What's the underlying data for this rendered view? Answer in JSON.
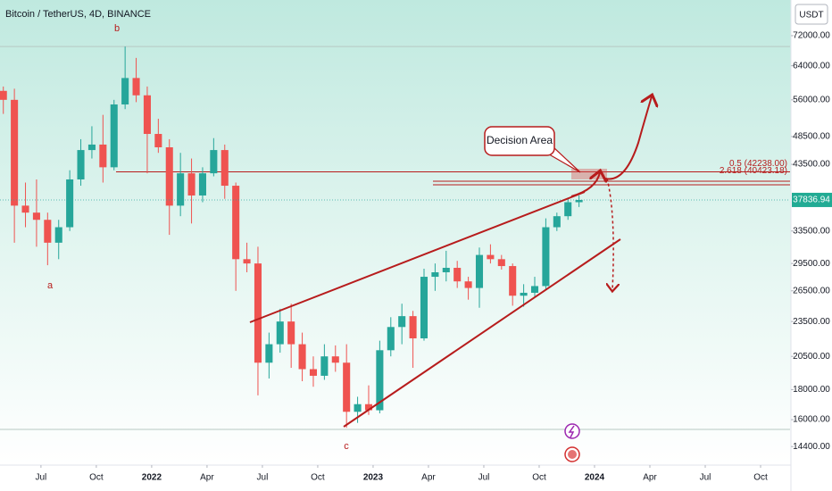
{
  "chart_data": {
    "type": "candlestick",
    "title": "Bitcoin / TetherUS, 4D, BINANCE",
    "currency": "USDT",
    "log_scale": true,
    "grid": false,
    "up_color": "#26a69a",
    "down_color": "#ef5350",
    "x": [
      2021.33,
      2021.38,
      2021.43,
      2021.48,
      2021.53,
      2021.58,
      2021.63,
      2021.68,
      2021.73,
      2021.78,
      2021.83,
      2021.88,
      2021.93,
      2021.98,
      2022.03,
      2022.08,
      2022.13,
      2022.18,
      2022.23,
      2022.28,
      2022.33,
      2022.38,
      2022.43,
      2022.48,
      2022.53,
      2022.58,
      2022.63,
      2022.68,
      2022.73,
      2022.78,
      2022.83,
      2022.88,
      2022.93,
      2022.98,
      2023.03,
      2023.08,
      2023.13,
      2023.18,
      2023.23,
      2023.28,
      2023.33,
      2023.38,
      2023.43,
      2023.48,
      2023.53,
      2023.58,
      2023.63,
      2023.68,
      2023.73,
      2023.78,
      2023.83,
      2023.88,
      2023.93
    ],
    "open": [
      58000,
      56000,
      37000,
      36000,
      35000,
      32000,
      34000,
      41000,
      46000,
      47000,
      43000,
      55000,
      61000,
      57000,
      49000,
      46500,
      37000,
      42000,
      38500,
      42000,
      46000,
      40000,
      30000,
      29500,
      20000,
      21500,
      23500,
      21500,
      19500,
      19000,
      20500,
      20000,
      16500,
      17000,
      16600,
      21000,
      23000,
      24000,
      22000,
      28000,
      28500,
      29000,
      27500,
      26800,
      30500,
      30000,
      29200,
      26000,
      26300,
      27000,
      34000,
      35500,
      37500
    ],
    "high": [
      59000,
      58500,
      40500,
      41000,
      36000,
      35000,
      42500,
      48000,
      50500,
      52800,
      56000,
      69000,
      66000,
      59000,
      52000,
      48000,
      45500,
      44500,
      43000,
      48200,
      47000,
      40500,
      32000,
      31500,
      22500,
      24700,
      25200,
      22500,
      20500,
      21500,
      21400,
      21500,
      17500,
      18300,
      21800,
      23900,
      25200,
      24500,
      28900,
      29500,
      31000,
      29800,
      28000,
      31400,
      31800,
      30500,
      29500,
      27200,
      28000,
      35200,
      36000,
      38000,
      38500
    ],
    "low": [
      53000,
      32000,
      34000,
      31500,
      29300,
      30000,
      33500,
      40000,
      44500,
      40500,
      42500,
      54000,
      55500,
      42000,
      45500,
      33000,
      35500,
      34500,
      37500,
      41500,
      38000,
      26500,
      28500,
      17600,
      18800,
      20800,
      19600,
      18600,
      18200,
      18700,
      19300,
      15500,
      15800,
      16300,
      16400,
      20500,
      21500,
      19600,
      21800,
      26500,
      27500,
      26800,
      25600,
      24800,
      29500,
      28800,
      25000,
      24900,
      25800,
      26600,
      33500,
      35000,
      36800
    ],
    "close": [
      56000,
      37000,
      36000,
      35000,
      32000,
      34000,
      41000,
      46000,
      47000,
      43000,
      55000,
      61000,
      57000,
      49000,
      46500,
      37000,
      42000,
      38500,
      42000,
      46000,
      40000,
      30000,
      29500,
      20000,
      21500,
      23500,
      21500,
      19500,
      19000,
      20500,
      20000,
      16500,
      17000,
      16600,
      21000,
      23000,
      24000,
      22000,
      28000,
      28500,
      29000,
      27500,
      26800,
      30500,
      30000,
      29200,
      26000,
      26300,
      27000,
      34000,
      35500,
      37500,
      37836.94
    ],
    "last_price": 37836.94,
    "xlim": [
      2021.315,
      2024.883
    ],
    "xticks": [
      {
        "value": 2021.5,
        "label": "Jul"
      },
      {
        "value": 2021.75,
        "label": "Oct"
      },
      2022,
      {
        "value": 2022.25,
        "label": "Apr"
      },
      {
        "value": 2022.5,
        "label": "Jul"
      },
      {
        "value": 2022.75,
        "label": "Oct"
      },
      2023,
      {
        "value": 2023.25,
        "label": "Apr"
      },
      {
        "value": 2023.5,
        "label": "Jul"
      },
      {
        "value": 2023.75,
        "label": "Oct"
      },
      2024,
      {
        "value": 2024.25,
        "label": "Apr"
      },
      {
        "value": 2024.5,
        "label": "Jul"
      },
      {
        "value": 2024.75,
        "label": "Oct"
      }
    ],
    "ylim": [
      13390,
      82800
    ],
    "yticks": [
      {
        "value": 72000,
        "label": "72000.00"
      },
      {
        "value": 64000,
        "label": "64000.00"
      },
      {
        "value": 56000,
        "label": "56000.00"
      },
      {
        "value": 48500,
        "label": "48500.00"
      },
      {
        "value": 43500,
        "label": "43500.00"
      },
      {
        "value": 33500,
        "label": "33500.00"
      },
      {
        "value": 29500,
        "label": "29500.00"
      },
      {
        "value": 26500,
        "label": "26500.00"
      },
      {
        "value": 23500,
        "label": "23500.00"
      },
      {
        "value": 20500,
        "label": "20500.00"
      },
      {
        "value": 18000,
        "label": "18000.00"
      },
      {
        "value": 16000,
        "label": "16000.00"
      },
      {
        "value": 14400,
        "label": "14400.00"
      }
    ],
    "fib_levels": [
      {
        "value": 42238,
        "label": "0.5 (42238.00)"
      },
      {
        "value": 40423.18,
        "label": "2.618 (40423.18)"
      }
    ],
    "reference_levels": [
      69000,
      15400
    ],
    "annotations": {
      "wave_a": "a",
      "wave_b": "b",
      "wave_c": "c",
      "callout": "Decision Area"
    }
  }
}
